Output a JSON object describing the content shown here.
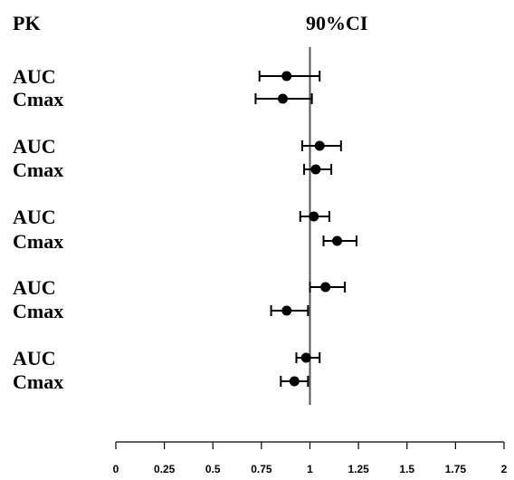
{
  "chart_data": {
    "type": "forest",
    "header_left": "PK",
    "header_right": "90%CI",
    "reference_line": 1,
    "xlim": [
      0,
      2
    ],
    "x_ticks": [
      0,
      0.25,
      0.5,
      0.75,
      1,
      1.25,
      1.5,
      1.75,
      2
    ],
    "x_tick_labels": [
      "0",
      "0.25",
      "0.5",
      "0.75",
      "1",
      "1.25",
      "1.5",
      "1.75",
      "2"
    ],
    "rows": [
      {
        "label": "AUC",
        "estimate": 0.88,
        "lower": 0.74,
        "upper": 1.05
      },
      {
        "label": "Cmax",
        "estimate": 0.86,
        "lower": 0.72,
        "upper": 1.01
      },
      {
        "label": "AUC",
        "estimate": 1.05,
        "lower": 0.96,
        "upper": 1.16
      },
      {
        "label": "Cmax",
        "estimate": 1.03,
        "lower": 0.97,
        "upper": 1.11
      },
      {
        "label": "AUC",
        "estimate": 1.02,
        "lower": 0.95,
        "upper": 1.1
      },
      {
        "label": "Cmax",
        "estimate": 1.14,
        "lower": 1.07,
        "upper": 1.24
      },
      {
        "label": "AUC",
        "estimate": 1.08,
        "lower": 1.0,
        "upper": 1.18
      },
      {
        "label": "Cmax",
        "estimate": 0.88,
        "lower": 0.8,
        "upper": 0.99
      },
      {
        "label": "AUC",
        "estimate": 0.98,
        "lower": 0.93,
        "upper": 1.05
      },
      {
        "label": "Cmax",
        "estimate": 0.92,
        "lower": 0.85,
        "upper": 0.99
      }
    ]
  }
}
